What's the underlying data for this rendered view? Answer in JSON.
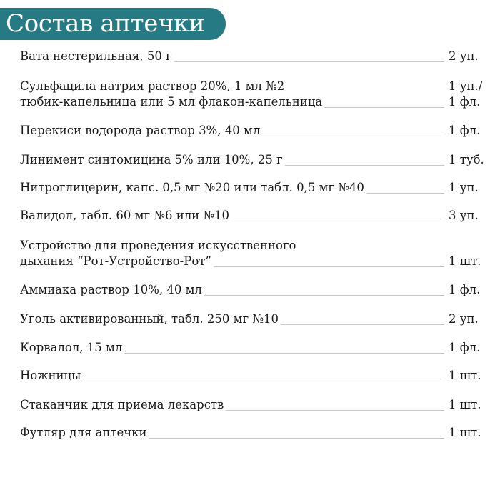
{
  "title": "Состав аптечки",
  "items": [
    {
      "lines": [
        "Вата нестерильная, 50 г"
      ],
      "qty": [
        "2 уп."
      ]
    },
    {
      "lines": [
        "Сульфацила натрия раствор 20%, 1 мл №2",
        "тюбик-капельница или 5 мл флакон-капельница"
      ],
      "qty": [
        "1 уп./",
        "1 фл."
      ]
    },
    {
      "lines": [
        "Перекиси водорода раствор 3%, 40 мл"
      ],
      "qty": [
        "1 фл."
      ]
    },
    {
      "lines": [
        "Линимент синтомицина 5% или 10%, 25 г"
      ],
      "qty": [
        "1 туб."
      ]
    },
    {
      "lines": [
        "Нитроглицерин, капс. 0,5 мг №20 или табл. 0,5 мг №40"
      ],
      "qty": [
        "1 уп."
      ]
    },
    {
      "lines": [
        "Валидол, табл. 60 мг №6 или №10"
      ],
      "qty": [
        "3 уп."
      ]
    },
    {
      "lines": [
        "Устройство для проведения искусственного",
        "дыхания “Рот-Устройство-Рот”"
      ],
      "qty": [
        "1 шт."
      ]
    },
    {
      "lines": [
        "Аммиака раствор 10%, 40 мл"
      ],
      "qty": [
        "1 фл."
      ]
    },
    {
      "lines": [
        "Уголь активированный, табл. 250 мг №10"
      ],
      "qty": [
        "2 уп."
      ]
    },
    {
      "lines": [
        "Корвалол, 15 мл"
      ],
      "qty": [
        "1 фл."
      ]
    },
    {
      "lines": [
        "Ножницы"
      ],
      "qty": [
        "1 шт."
      ]
    },
    {
      "lines": [
        "Стаканчик для приема лекарств"
      ],
      "qty": [
        "1 шт."
      ]
    },
    {
      "lines": [
        "Футляр для аптечки"
      ],
      "qty": [
        "1 шт."
      ]
    }
  ]
}
